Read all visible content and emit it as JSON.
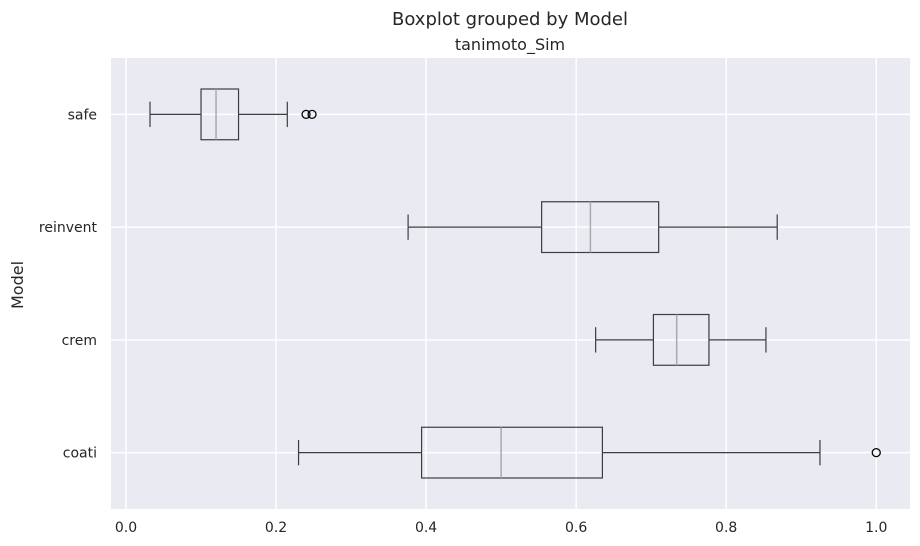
{
  "chart_data": {
    "type": "boxplot",
    "orientation": "horizontal",
    "title": "Boxplot grouped by Model",
    "subtitle": "tanimoto_Sim",
    "xlabel": "",
    "ylabel": "Model",
    "xlim": [
      -0.02,
      1.045
    ],
    "xticks": [
      0.0,
      0.2,
      0.4,
      0.6,
      0.8,
      1.0
    ],
    "xtick_labels": [
      "0.0",
      "0.2",
      "0.4",
      "0.6",
      "0.8",
      "1.0"
    ],
    "grid": true,
    "colors": {
      "background": "#eaeaf2",
      "grid": "#ffffff",
      "box": "#3d3d3d",
      "median": "#aaaaaa"
    },
    "categories": [
      "safe",
      "reinvent",
      "crem",
      "coati"
    ],
    "boxes": [
      {
        "label": "safe",
        "whisker_low": 0.032,
        "q1": 0.1,
        "median": 0.12,
        "q3": 0.15,
        "whisker_high": 0.215,
        "outliers": [
          0.24,
          0.248
        ]
      },
      {
        "label": "reinvent",
        "whisker_low": 0.376,
        "q1": 0.554,
        "median": 0.619,
        "q3": 0.71,
        "whisker_high": 0.868,
        "outliers": []
      },
      {
        "label": "crem",
        "whisker_low": 0.626,
        "q1": 0.703,
        "median": 0.734,
        "q3": 0.777,
        "whisker_high": 0.853,
        "outliers": []
      },
      {
        "label": "coati",
        "whisker_low": 0.23,
        "q1": 0.394,
        "median": 0.5,
        "q3": 0.635,
        "whisker_high": 0.925,
        "outliers": [
          1.0
        ]
      }
    ]
  }
}
